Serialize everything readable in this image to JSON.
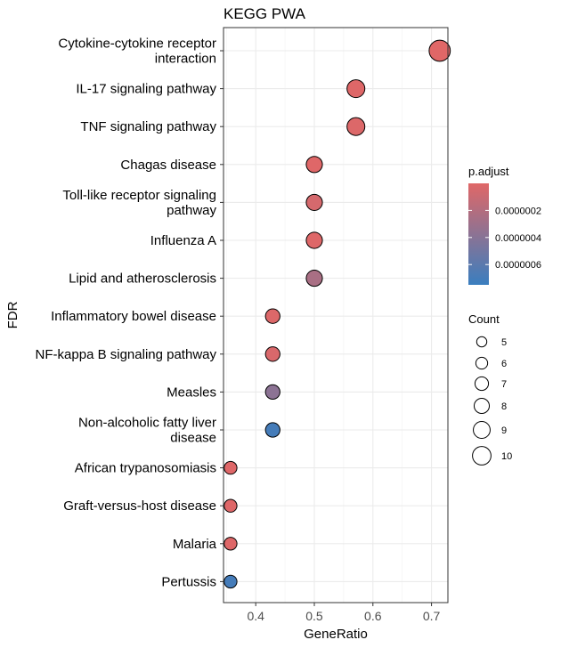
{
  "chart_data": {
    "type": "scatter",
    "title": "KEGG PWA",
    "xlabel": "GeneRatio",
    "ylabel": "FDR",
    "xlim": [
      0.345,
      0.728
    ],
    "x_ticks": [
      0.4,
      0.5,
      0.6,
      0.7
    ],
    "x_tick_labels": [
      "0.4",
      "0.5",
      "0.6",
      "0.7"
    ],
    "grid": true,
    "legend_position": "right",
    "categories": [
      "Cytokine-cytokine receptor interaction",
      "IL-17 signaling pathway",
      "TNF signaling pathway",
      "Chagas disease",
      "Toll-like receptor signaling pathway",
      "Influenza A",
      "Lipid and atherosclerosis",
      "Inflammatory bowel disease",
      "NF-kappa B signaling pathway",
      "Measles",
      "Non-alcoholic fatty liver disease",
      "African trypanosomiasis",
      "Graft-versus-host disease",
      "Malaria",
      "Pertussis"
    ],
    "category_lines": [
      [
        "Cytokine-cytokine receptor",
        "interaction"
      ],
      [
        "IL-17 signaling pathway"
      ],
      [
        "TNF signaling pathway"
      ],
      [
        "Chagas disease"
      ],
      [
        "Toll-like receptor signaling",
        "pathway"
      ],
      [
        "Influenza A"
      ],
      [
        "Lipid and atherosclerosis"
      ],
      [
        "Inflammatory bowel disease"
      ],
      [
        "NF-kappa B signaling pathway"
      ],
      [
        "Measles"
      ],
      [
        "Non-alcoholic fatty liver",
        "disease"
      ],
      [
        "African trypanosomiasis"
      ],
      [
        "Graft-versus-host disease"
      ],
      [
        "Malaria"
      ],
      [
        "Pertussis"
      ]
    ],
    "gene_ratio": [
      0.714,
      0.571,
      0.571,
      0.5,
      0.5,
      0.5,
      0.5,
      0.429,
      0.429,
      0.429,
      0.429,
      0.357,
      0.357,
      0.357,
      0.357
    ],
    "count": [
      10,
      8,
      8,
      7,
      7,
      7,
      7,
      6,
      6,
      6,
      6,
      5,
      5,
      5,
      5
    ],
    "p_adjust": [
      1e-09,
      1e-08,
      2e-08,
      5e-09,
      5e-08,
      1e-08,
      2.5e-07,
      2e-08,
      3e-08,
      3.8e-07,
      7e-07,
      1e-08,
      1e-08,
      1e-08,
      7e-07
    ],
    "color_legend": {
      "title": "p.adjust",
      "min": 0.0,
      "max": 7.5e-07,
      "colors": [
        "#e06767",
        "#3a7ebf"
      ],
      "ticks": [
        2e-07,
        4e-07,
        6e-07
      ],
      "tick_labels": [
        "0.0000002",
        "0.0000004",
        "0.0000006"
      ]
    },
    "size_legend": {
      "title": "Count",
      "values": [
        5,
        6,
        7,
        8,
        9,
        10
      ],
      "labels": [
        "5",
        "6",
        "7",
        "8",
        "9",
        "10"
      ]
    }
  }
}
